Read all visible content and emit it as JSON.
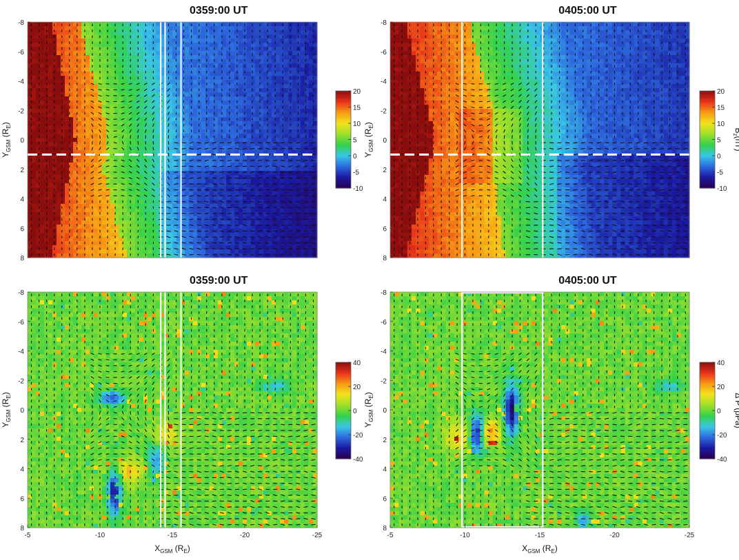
{
  "chart_data": [
    {
      "type": "heatmap",
      "title": "0359:00 UT",
      "xlim": [
        -5,
        -25
      ],
      "ylim": [
        8,
        -8
      ],
      "xlabel_main": "X",
      "xlabel_sub": "GSM",
      "xlabel_unit": "(R",
      "xlabel_unit_sub": "E",
      "xlabel_close": ")",
      "ylabel_main": "Y",
      "ylabel_sub": "GSM",
      "ylabel_unit": "(R",
      "ylabel_unit_sub": "E",
      "ylabel_close": ")",
      "show_xlabel": false,
      "show_ylabel": true,
      "yticks": [
        -8,
        -6,
        -4,
        -2,
        0,
        2,
        4,
        6,
        8
      ],
      "ytick_labels": [
        "-8",
        "-6",
        "-4",
        "-2",
        "0",
        "2",
        "4",
        "6",
        "8"
      ],
      "colorbar": {
        "range": [
          -10,
          20
        ],
        "ticks": [
          20,
          15,
          10,
          5,
          0,
          -5,
          -10
        ],
        "tick_labels": [
          "20",
          "15",
          "10",
          "5",
          "0",
          "-5",
          "-10"
        ],
        "label": ""
      },
      "dashed_line_y": 1,
      "white_lines_x": [
        -14.2,
        -14.5,
        -15.6
      ],
      "field": "Bz"
    },
    {
      "type": "heatmap",
      "title": "0405:00 UT",
      "xlim": [
        -5,
        -25
      ],
      "ylim": [
        8,
        -8
      ],
      "xlabel_main": "X",
      "xlabel_sub": "GSM",
      "xlabel_unit": "(R",
      "xlabel_unit_sub": "E",
      "xlabel_close": ")",
      "ylabel_main": "Y",
      "ylabel_sub": "GSM",
      "ylabel_unit": "(R",
      "ylabel_unit_sub": "E",
      "ylabel_close": ")",
      "show_xlabel": false,
      "show_ylabel": true,
      "yticks": [
        -8,
        -6,
        -4,
        -2,
        0,
        2,
        4,
        6,
        8
      ],
      "ytick_labels": [
        "-8",
        "-6",
        "-4",
        "-2",
        "0",
        "2",
        "4",
        "6",
        "8"
      ],
      "colorbar": {
        "range": [
          -10,
          20
        ],
        "ticks": [
          20,
          15,
          10,
          5,
          0,
          -5,
          -10
        ],
        "tick_labels": [
          "20",
          "15",
          "10",
          "5",
          "0",
          "-5",
          "-10"
        ],
        "label": "B",
        "label_sub": "z",
        "label_unit": "(nT)"
      },
      "dashed_line_y": 1,
      "white_lines_x": [
        -9.8,
        -15.2
      ],
      "field": "Bz"
    },
    {
      "type": "heatmap",
      "title": "0359:00 UT",
      "xlim": [
        -5,
        -25
      ],
      "ylim": [
        8,
        -8
      ],
      "xlabel_main": "X",
      "xlabel_sub": "GSM",
      "xlabel_unit": "(R",
      "xlabel_unit_sub": "E",
      "xlabel_close": ")",
      "ylabel_main": "Y",
      "ylabel_sub": "GSM",
      "ylabel_unit": "(R",
      "ylabel_unit_sub": "E",
      "ylabel_close": ")",
      "show_xlabel": true,
      "show_ylabel": true,
      "xticks": [
        -5,
        -10,
        -15,
        -20,
        -25
      ],
      "xtick_labels": [
        "-5",
        "-10",
        "-15",
        "-20",
        "-25"
      ],
      "yticks": [
        -8,
        -6,
        -4,
        -2,
        0,
        2,
        4,
        6,
        8
      ],
      "ytick_labels": [
        "-8",
        "-6",
        "-4",
        "-2",
        "0",
        "2",
        "4",
        "6",
        "8"
      ],
      "colorbar": {
        "range": [
          -40,
          40
        ],
        "ticks": [
          40,
          20,
          0,
          -20,
          -40
        ],
        "tick_labels": [
          "40",
          "20",
          "0",
          "-20",
          "-40"
        ],
        "label": ""
      },
      "white_lines_x": [
        -14.2,
        -14.5,
        -15.6
      ],
      "field": "dP"
    },
    {
      "type": "heatmap",
      "title": "0405:00 UT",
      "xlim": [
        -5,
        -25
      ],
      "ylim": [
        8,
        -8
      ],
      "xlabel_main": "X",
      "xlabel_sub": "GSM",
      "xlabel_unit": "(R",
      "xlabel_unit_sub": "E",
      "xlabel_close": ")",
      "ylabel_main": "Y",
      "ylabel_sub": "GSM",
      "ylabel_unit": "(R",
      "ylabel_unit_sub": "E",
      "ylabel_close": ")",
      "show_xlabel": true,
      "show_ylabel": true,
      "xticks": [
        -5,
        -10,
        -15,
        -20,
        -25
      ],
      "xtick_labels": [
        "-5",
        "-10",
        "-15",
        "-20",
        "-25"
      ],
      "yticks": [
        -8,
        -6,
        -4,
        -2,
        0,
        2,
        4,
        6,
        8
      ],
      "ytick_labels": [
        "-8",
        "-6",
        "-4",
        "-2",
        "0",
        "2",
        "4",
        "6",
        "8"
      ],
      "colorbar": {
        "range": [
          -40,
          40
        ],
        "ticks": [
          40,
          20,
          0,
          -20,
          -40
        ],
        "tick_labels": [
          "40",
          "20",
          "0",
          "-20",
          "-40"
        ],
        "label": "Δ P",
        "label_unit": "(pPa)"
      },
      "white_lines_x": [
        -9.8,
        -15.2
      ],
      "white_box": {
        "x": [
          -9.8,
          -15.2
        ],
        "y": [
          -8,
          8
        ]
      },
      "field": "dP"
    }
  ],
  "colors": {
    "jet": [
      "#2b0050",
      "#1a1aa0",
      "#2e6be0",
      "#39c7e6",
      "#33d24a",
      "#9fdf2a",
      "#f2e21b",
      "#f79a16",
      "#e8321a",
      "#8a0d0d"
    ],
    "background": "#ffffff"
  }
}
